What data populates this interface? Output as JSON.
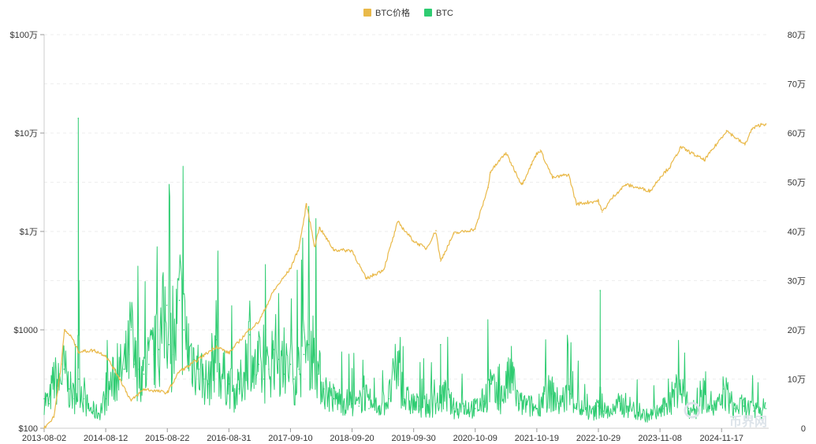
{
  "chart_data": {
    "type": "line",
    "legend": {
      "placement": "top-center",
      "items": [
        {
          "label": "BTC价格",
          "color": "#e9b949"
        },
        {
          "label": "BTC",
          "color": "#2ecc71"
        }
      ]
    },
    "x_tick_labels": [
      "2013-08-02",
      "2014-08-12",
      "2015-08-22",
      "2016-08-31",
      "2017-09-10",
      "2018-09-20",
      "2019-09-30",
      "2020-10-09",
      "2021-10-19",
      "2022-10-29",
      "2023-11-08",
      "2024-11-17"
    ],
    "y_left": {
      "scale": "log",
      "range": [
        100,
        1000000
      ],
      "tick_values": [
        100,
        1000,
        10000,
        100000,
        1000000
      ],
      "tick_labels": [
        "$100",
        "$1000",
        "$1万",
        "$10万",
        "$100万"
      ]
    },
    "y_right": {
      "scale": "linear",
      "range": [
        0,
        800000
      ],
      "tick_values": [
        0,
        100000,
        200000,
        300000,
        400000,
        500000,
        600000,
        700000,
        800000
      ],
      "tick_labels": [
        "0",
        "10万",
        "20万",
        "30万",
        "40万",
        "50万",
        "60万",
        "70万",
        "80万"
      ]
    },
    "series": [
      {
        "name": "BTC价格",
        "axis": "left",
        "color": "#e9b949",
        "x": [
          "2013-08-02",
          "2013-10-01",
          "2013-11-15",
          "2013-12-04",
          "2014-01-15",
          "2014-03-01",
          "2014-06-01",
          "2014-08-12",
          "2014-11-01",
          "2015-01-14",
          "2015-04-01",
          "2015-08-22",
          "2015-11-04",
          "2016-01-01",
          "2016-06-17",
          "2016-08-31",
          "2017-01-01",
          "2017-03-01",
          "2017-06-01",
          "2017-09-10",
          "2017-11-01",
          "2017-12-17",
          "2018-02-05",
          "2018-03-05",
          "2018-06-01",
          "2018-09-20",
          "2018-11-20",
          "2018-12-15",
          "2019-04-01",
          "2019-06-26",
          "2019-09-30",
          "2019-12-17",
          "2020-02-13",
          "2020-03-12",
          "2020-06-01",
          "2020-10-09",
          "2020-12-27",
          "2021-01-08",
          "2021-04-14",
          "2021-07-20",
          "2021-10-19",
          "2021-11-10",
          "2022-01-24",
          "2022-05-01",
          "2022-06-18",
          "2022-10-29",
          "2022-11-21",
          "2023-01-31",
          "2023-04-14",
          "2023-09-11",
          "2023-11-08",
          "2024-01-11",
          "2024-03-14",
          "2024-08-05",
          "2024-11-17",
          "2024-12-17",
          "2025-04-08",
          "2025-05-22",
          "2025-07-14",
          "2025-08-14"
        ],
        "values": [
          100,
          130,
          450,
          1000,
          850,
          600,
          620,
          550,
          330,
          190,
          250,
          230,
          380,
          430,
          680,
          580,
          1000,
          1200,
          2500,
          4200,
          6800,
          19000,
          7000,
          11000,
          6500,
          6400,
          4000,
          3300,
          4100,
          12500,
          8000,
          6700,
          10200,
          5000,
          9500,
          10600,
          28000,
          40000,
          63000,
          30000,
          62000,
          67000,
          35000,
          38000,
          19000,
          20500,
          15800,
          23000,
          30000,
          25800,
          35500,
          46000,
          72000,
          53000,
          90000,
          106000,
          76000,
          110000,
          122000,
          124000
        ]
      },
      {
        "name": "BTC",
        "axis": "right",
        "color": "#2ecc71",
        "x": [
          "2013-08-02",
          "2013-09-01",
          "2013-10-01",
          "2013-11-01",
          "2013-12-01",
          "2014-01-01",
          "2014-02-01",
          "2014-02-26",
          "2014-03-01",
          "2014-04-01",
          "2014-05-01",
          "2014-06-01",
          "2014-07-01",
          "2014-08-12",
          "2014-09-01",
          "2014-10-01",
          "2014-11-01",
          "2014-12-01",
          "2015-01-01",
          "2015-01-14",
          "2015-02-01",
          "2015-03-01",
          "2015-04-01",
          "2015-05-01",
          "2015-06-01",
          "2015-07-01",
          "2015-08-19",
          "2015-09-01",
          "2015-10-01",
          "2015-11-04",
          "2015-12-01",
          "2016-01-01",
          "2016-02-01",
          "2016-03-01",
          "2016-04-01",
          "2016-05-01",
          "2016-06-17",
          "2016-07-01",
          "2016-08-31",
          "2016-10-01",
          "2016-11-01",
          "2016-12-01",
          "2017-01-05",
          "2017-02-01",
          "2017-03-01",
          "2017-04-01",
          "2017-05-01",
          "2017-06-01",
          "2017-07-01",
          "2017-08-01",
          "2017-09-10",
          "2017-10-01",
          "2017-11-01",
          "2017-12-01",
          "2018-01-01",
          "2018-02-01",
          "2018-03-01",
          "2018-04-01",
          "2018-06-01",
          "2018-08-01",
          "2018-09-20",
          "2018-11-01",
          "2018-12-01",
          "2019-01-01",
          "2019-03-01",
          "2019-05-01",
          "2019-06-26",
          "2019-08-01",
          "2019-09-30",
          "2019-11-01",
          "2020-01-01",
          "2020-03-12",
          "2020-04-01",
          "2020-06-01",
          "2020-08-01",
          "2020-10-09",
          "2020-12-01",
          "2021-01-11",
          "2021-03-01",
          "2021-05-19",
          "2021-07-01",
          "2021-09-07",
          "2021-10-19",
          "2021-12-04",
          "2022-01-24",
          "2022-03-01",
          "2022-05-11",
          "2022-06-18",
          "2022-08-01",
          "2022-10-01",
          "2022-10-29",
          "2022-11-09",
          "2022-12-01",
          "2023-02-01",
          "2023-03-10",
          "2023-05-01",
          "2023-07-01",
          "2023-09-01",
          "2023-11-08",
          "2023-12-01",
          "2024-01-11",
          "2024-03-05",
          "2024-05-01",
          "2024-07-01",
          "2024-08-05",
          "2024-10-01",
          "2024-11-17",
          "2024-12-01",
          "2025-02-01",
          "2025-04-01",
          "2025-06-01",
          "2025-08-14"
        ],
        "values": [
          60000,
          50000,
          100000,
          90000,
          120000,
          80000,
          60000,
          630000,
          100000,
          60000,
          40000,
          35000,
          30000,
          60000,
          80000,
          100000,
          110000,
          120000,
          150000,
          200000,
          130000,
          120000,
          110000,
          130000,
          150000,
          160000,
          250000,
          170000,
          150000,
          260000,
          200000,
          160000,
          140000,
          120000,
          100000,
          90000,
          180000,
          120000,
          90000,
          70000,
          80000,
          110000,
          190000,
          110000,
          130000,
          100000,
          120000,
          160000,
          140000,
          110000,
          130000,
          100000,
          120000,
          150000,
          170000,
          160000,
          110000,
          80000,
          60000,
          55000,
          50000,
          45000,
          80000,
          40000,
          45000,
          60000,
          130000,
          60000,
          50000,
          45000,
          45000,
          170000,
          70000,
          40000,
          45000,
          40000,
          55000,
          90000,
          50000,
          110000,
          50000,
          45000,
          40000,
          70000,
          70000,
          50000,
          70000,
          50000,
          35000,
          30000,
          45000,
          280000,
          35000,
          35000,
          50000,
          45000,
          30000,
          25000,
          35000,
          40000,
          55000,
          90000,
          40000,
          35000,
          80000,
          40000,
          50000,
          80000,
          40000,
          45000,
          35000,
          40000
        ]
      }
    ],
    "watermark": "币界网"
  }
}
